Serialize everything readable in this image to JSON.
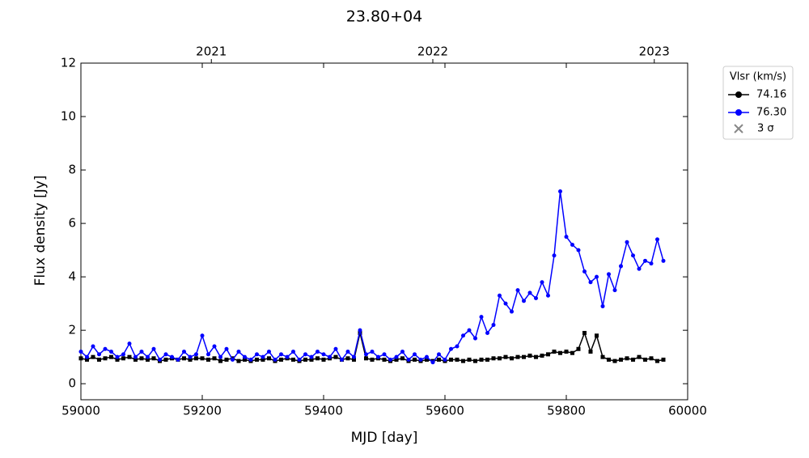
{
  "chart_data": {
    "type": "line",
    "title": "23.80+04",
    "x_label": "MJD [day]",
    "y_label": "Flux density [Jy]",
    "legend_title": "Vlsr (km/s)",
    "threshold_label": "3 σ",
    "legend_position": "outside upper right",
    "xlim": [
      59000,
      60000
    ],
    "xticks": [
      59000,
      59200,
      59400,
      59600,
      59800,
      60000
    ],
    "ylim": [
      -0.6,
      12
    ],
    "yticks": [
      0,
      2,
      4,
      6,
      8,
      10,
      12
    ],
    "x2ticks": [
      {
        "value": 59215,
        "label": "2021"
      },
      {
        "value": 59580,
        "label": "2022"
      },
      {
        "value": 59945,
        "label": "2023"
      }
    ],
    "x": [
      59000,
      59010,
      59020,
      59030,
      59040,
      59050,
      59060,
      59070,
      59080,
      59090,
      59100,
      59110,
      59120,
      59130,
      59140,
      59150,
      59160,
      59170,
      59180,
      59190,
      59200,
      59210,
      59220,
      59230,
      59240,
      59250,
      59260,
      59270,
      59280,
      59290,
      59300,
      59310,
      59320,
      59330,
      59340,
      59350,
      59360,
      59370,
      59380,
      59390,
      59400,
      59410,
      59420,
      59430,
      59440,
      59450,
      59460,
      59470,
      59480,
      59490,
      59500,
      59510,
      59520,
      59530,
      59540,
      59550,
      59560,
      59570,
      59580,
      59590,
      59600,
      59610,
      59620,
      59630,
      59640,
      59650,
      59660,
      59670,
      59680,
      59690,
      59700,
      59710,
      59720,
      59730,
      59740,
      59750,
      59760,
      59770,
      59780,
      59790,
      59800,
      59810,
      59820,
      59830,
      59840,
      59850,
      59860,
      59870,
      59880,
      59890,
      59900,
      59910,
      59920,
      59930,
      59940,
      59950,
      59960
    ],
    "series": [
      {
        "name": "74.16",
        "color": "#000000",
        "values": [
          0.95,
          0.9,
          1.0,
          0.9,
          0.95,
          1.0,
          0.9,
          0.95,
          1.0,
          0.9,
          0.95,
          0.9,
          0.95,
          0.85,
          0.9,
          0.95,
          0.9,
          0.95,
          0.9,
          0.95,
          0.95,
          0.9,
          0.95,
          0.85,
          0.9,
          0.95,
          0.85,
          0.9,
          0.85,
          0.9,
          0.9,
          0.95,
          0.85,
          0.9,
          0.95,
          0.9,
          0.85,
          0.9,
          0.9,
          0.95,
          0.9,
          0.95,
          1.0,
          0.9,
          0.95,
          0.9,
          1.9,
          0.95,
          0.9,
          0.95,
          0.9,
          0.85,
          0.9,
          0.95,
          0.85,
          0.9,
          0.85,
          0.9,
          0.85,
          0.9,
          0.85,
          0.9,
          0.9,
          0.85,
          0.9,
          0.85,
          0.9,
          0.9,
          0.95,
          0.95,
          1.0,
          0.95,
          1.0,
          1.0,
          1.05,
          1.0,
          1.05,
          1.1,
          1.2,
          1.15,
          1.2,
          1.15,
          1.3,
          1.9,
          1.2,
          1.8,
          1.0,
          0.9,
          0.85,
          0.9,
          0.95,
          0.9,
          1.0,
          0.9,
          0.95,
          0.85,
          0.9
        ]
      },
      {
        "name": "76.30",
        "color": "#0000ff",
        "values": [
          1.2,
          1.0,
          1.4,
          1.1,
          1.3,
          1.2,
          1.0,
          1.1,
          1.5,
          1.0,
          1.2,
          1.0,
          1.3,
          0.9,
          1.1,
          1.0,
          0.9,
          1.2,
          1.0,
          1.1,
          1.8,
          1.1,
          1.4,
          1.0,
          1.3,
          0.9,
          1.2,
          1.0,
          0.9,
          1.1,
          1.0,
          1.2,
          0.9,
          1.1,
          1.0,
          1.2,
          0.9,
          1.1,
          1.0,
          1.2,
          1.1,
          1.0,
          1.3,
          0.9,
          1.2,
          1.0,
          2.0,
          1.1,
          1.2,
          1.0,
          1.1,
          0.9,
          1.0,
          1.2,
          0.9,
          1.1,
          0.9,
          1.0,
          0.8,
          1.1,
          0.9,
          1.3,
          1.4,
          1.8,
          2.0,
          1.7,
          2.5,
          1.9,
          2.2,
          3.3,
          3.0,
          2.7,
          3.5,
          3.1,
          3.4,
          3.2,
          3.8,
          3.3,
          4.8,
          7.2,
          5.5,
          5.2,
          5.0,
          4.2,
          3.8,
          4.0,
          2.9,
          4.1,
          3.5,
          4.4,
          5.3,
          4.8,
          4.3,
          4.6,
          4.5,
          5.4,
          4.6
        ]
      }
    ]
  }
}
